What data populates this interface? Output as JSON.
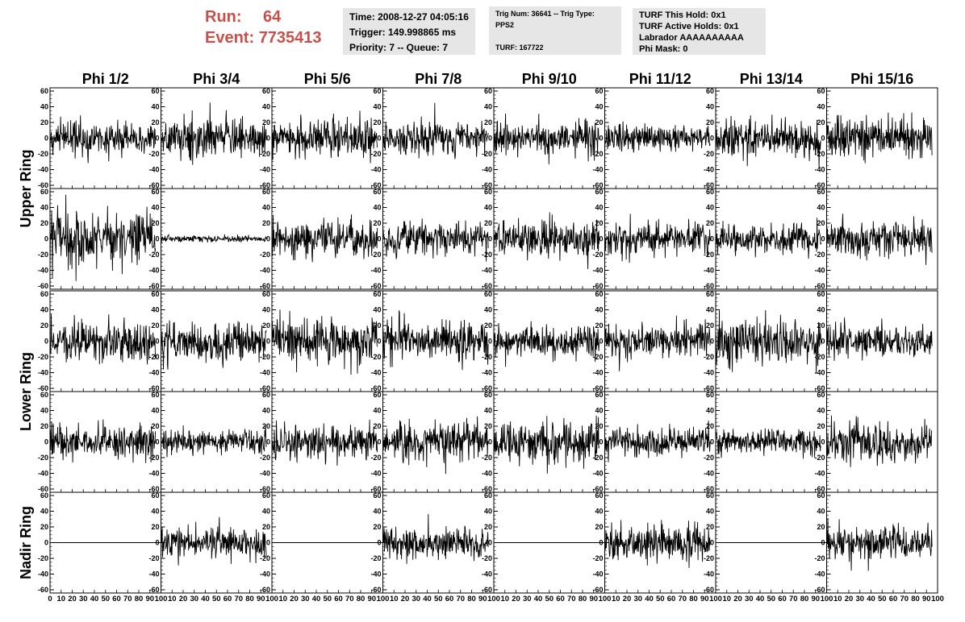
{
  "header": {
    "run_label": "Run:",
    "run_value": "64",
    "event_label": "Event:",
    "event_value": "7735413",
    "time": "Time: 2008-12-27 04:05:16",
    "trigger": "Trigger: 149.998865 ms",
    "priority": "Priority: 7 -- Queue: 7",
    "trig_num": "Trig Num: 36641 -- Trig Type: PPS2",
    "turf": "TURF: 167722",
    "turf_this_hold": "TURF This Hold: 0x1",
    "turf_active_holds": "TURF Active Holds: 0x1",
    "labrador": "Labrador AAAAAAAAAA",
    "phi_mask": "Phi Mask: 0"
  },
  "colors": {
    "header_red": "#c8504a",
    "info_bg": "#e6e6e6",
    "trace": "#000000"
  },
  "chart_data": {
    "type": "line",
    "columns": [
      "Phi 1/2",
      "Phi 3/4",
      "Phi 5/6",
      "Phi 7/8",
      "Phi 9/10",
      "Phi 11/12",
      "Phi 13/14",
      "Phi 15/16"
    ],
    "ring_labels": [
      "Upper Ring",
      "Lower Ring",
      "Nadir Ring"
    ],
    "rows_per_ring": [
      2,
      2,
      1
    ],
    "xlim": [
      0,
      100
    ],
    "ylim": [
      -60,
      60
    ],
    "y_ticks": [
      -60,
      -40,
      -20,
      0,
      20,
      40,
      60
    ],
    "x_ticks": [
      0,
      10,
      20,
      30,
      40,
      50,
      60,
      70,
      80,
      90,
      100
    ],
    "trace_range_x": [
      0,
      95
    ],
    "amplitude": [
      [
        10,
        12,
        13,
        11,
        11,
        8,
        12,
        13
      ],
      [
        17,
        2,
        11,
        11,
        12,
        10,
        9,
        12
      ],
      [
        12,
        13,
        15,
        12,
        10,
        11,
        15,
        10
      ],
      [
        12,
        7,
        11,
        13,
        13,
        9,
        8,
        12
      ],
      [
        0,
        10,
        0,
        10,
        0,
        12,
        0,
        11
      ]
    ]
  }
}
